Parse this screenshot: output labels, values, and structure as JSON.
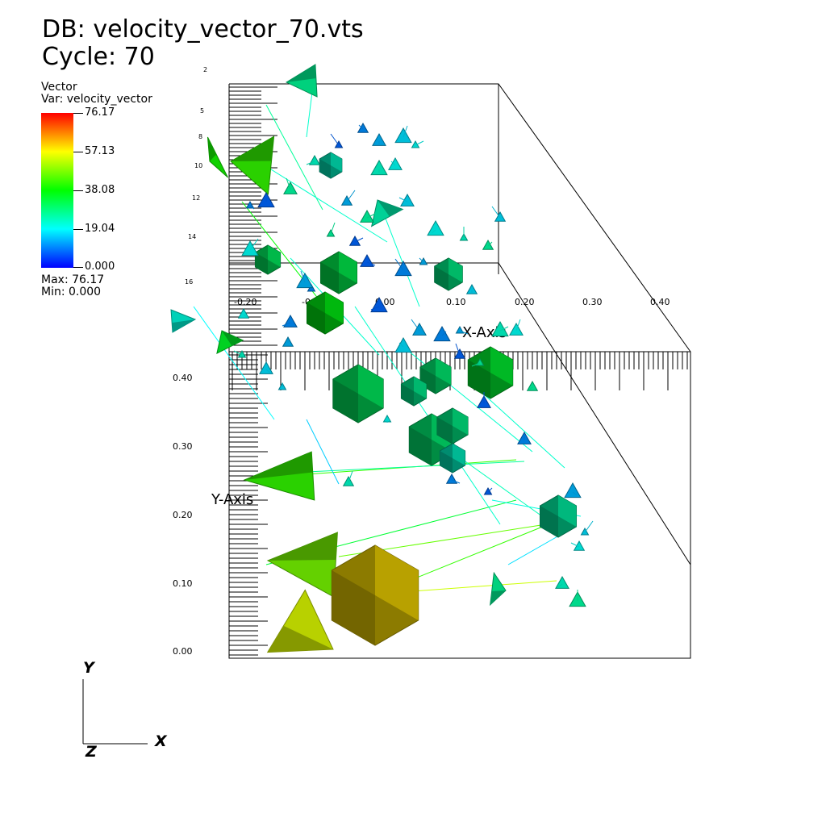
{
  "header": {
    "db_line": "DB: velocity_vector_70.vts",
    "cycle_line": "Cycle: 70"
  },
  "legend": {
    "name": "Vector",
    "var_line": "Var: velocity_vector",
    "ticks": [
      "76.17",
      "57.13",
      "38.08",
      "19.04",
      "0.000"
    ],
    "max_line": "Max:  76.17",
    "min_line": "Min:  0.000",
    "colors": {
      "top": "#ff0000",
      "upper": "#ffff00",
      "mid": "#00ff00",
      "lower": "#00ffff",
      "bottom": "#0000ff"
    }
  },
  "axes": {
    "x_title": "X-Axis",
    "y_title": "Y-Axis",
    "x_ticks": [
      "-0.20",
      "-0.10",
      "0.00",
      "0.10",
      "0.20",
      "0.30",
      "0.40"
    ],
    "y_ticks": [
      "0.40",
      "0.30",
      "0.20",
      "0.10",
      "0.00"
    ],
    "z_ticks": [
      "2",
      "5",
      "8",
      "10",
      "12",
      "14",
      "16"
    ]
  },
  "triad": {
    "x": "X",
    "y": "Y",
    "z": "Z"
  },
  "chart_data": {
    "type": "scatter",
    "plot": "3D vector glyph field (cones and hexagonal arrow heads)",
    "title": "DB: velocity_vector_70.vts",
    "subtitle": "Cycle: 70",
    "variable": "velocity_vector",
    "value_range": [
      0.0,
      76.17
    ],
    "xlabel": "X-Axis",
    "ylabel": "Y-Axis",
    "xlim": [
      -0.2,
      0.45
    ],
    "ylim": [
      0.0,
      0.45
    ],
    "glyphs": [
      {
        "x": 0.0,
        "y": 0.05,
        "magnitude": 60,
        "shape": "hexagon"
      },
      {
        "x": -0.1,
        "y": 0.04,
        "magnitude": 55,
        "shape": "cone"
      },
      {
        "x": -0.12,
        "y": 0.13,
        "magnitude": 48,
        "shape": "cone"
      },
      {
        "x": -0.15,
        "y": 0.27,
        "magnitude": 44,
        "shape": "cone"
      },
      {
        "x": 0.08,
        "y": 0.09,
        "magnitude": 30,
        "shape": "cone"
      },
      {
        "x": 0.25,
        "y": 0.2,
        "magnitude": 26,
        "shape": "hexagon"
      },
      {
        "x": -0.03,
        "y": 0.38,
        "magnitude": 30,
        "shape": "hexagon"
      },
      {
        "x": 0.07,
        "y": 0.32,
        "magnitude": 29,
        "shape": "hexagon"
      },
      {
        "x": 0.14,
        "y": 0.41,
        "magnitude": 32,
        "shape": "hexagon"
      },
      {
        "x": -0.08,
        "y": 0.5,
        "magnitude": 36,
        "shape": "cone"
      },
      {
        "x": -0.14,
        "y": 0.7,
        "magnitude": 40,
        "shape": "cone"
      },
      {
        "x": 0.04,
        "y": 0.62,
        "magnitude": 28,
        "shape": "cone"
      },
      {
        "x": -0.12,
        "y": 0.85,
        "magnitude": 24,
        "shape": "cone"
      },
      {
        "x": 0.0,
        "y": 0.56,
        "magnitude": 25,
        "shape": "hexagon"
      },
      {
        "x": 0.09,
        "y": 0.55,
        "magnitude": 27,
        "shape": "hexagon"
      }
    ]
  }
}
